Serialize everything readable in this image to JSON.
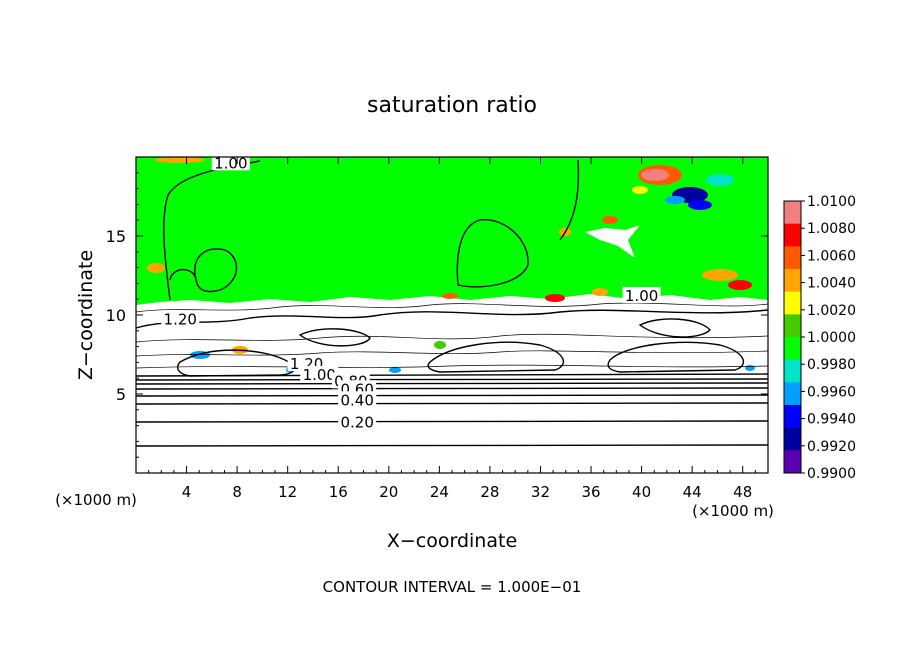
{
  "chart_data": {
    "type": "heatmap",
    "title": "saturation ratio",
    "xlabel": "X−coordinate",
    "ylabel": "Z−coordinate",
    "x_unit_label": "(×1000 m)",
    "y_unit_label": "(×1000 m)",
    "xlim": [
      0,
      50
    ],
    "ylim": [
      0,
      20
    ],
    "x_ticks": [
      4,
      8,
      12,
      16,
      20,
      24,
      28,
      32,
      36,
      40,
      44,
      48
    ],
    "y_ticks": [
      5,
      10,
      15
    ],
    "contour_interval_text": "CONTOUR INTERVAL = 1.000E−01",
    "contour_labels": [
      {
        "text": "1.00",
        "x": 7.5,
        "z": 19.6
      },
      {
        "text": "1.20",
        "x": 3.5,
        "z": 9.7
      },
      {
        "text": "1.20",
        "x": 13.5,
        "z": 6.9
      },
      {
        "text": "1.00",
        "x": 14.5,
        "z": 6.2
      },
      {
        "text": "0.80",
        "x": 17.0,
        "z": 5.8
      },
      {
        "text": "0.60",
        "x": 17.5,
        "z": 5.3
      },
      {
        "text": "0.40",
        "x": 17.5,
        "z": 4.6
      },
      {
        "text": "0.20",
        "x": 17.5,
        "z": 3.2
      },
      {
        "text": "1.00",
        "x": 40.0,
        "z": 11.2
      }
    ],
    "colorbar": {
      "labels": [
        "1.0100",
        "1.0080",
        "1.0060",
        "1.0040",
        "1.0020",
        "1.0000",
        "0.9980",
        "0.9960",
        "0.9940",
        "0.9920",
        "0.9900"
      ],
      "colors": [
        "#f08080",
        "#ff0000",
        "#ff5a00",
        "#ffa500",
        "#ffff00",
        "#44cc00",
        "#00ff00",
        "#00e5c8",
        "#00a0ff",
        "#0000ff",
        "#0000a0",
        "#5a00b4"
      ]
    },
    "field_colors": {
      "background": "#00ff00",
      "unsaturated": "#ffffff"
    }
  }
}
